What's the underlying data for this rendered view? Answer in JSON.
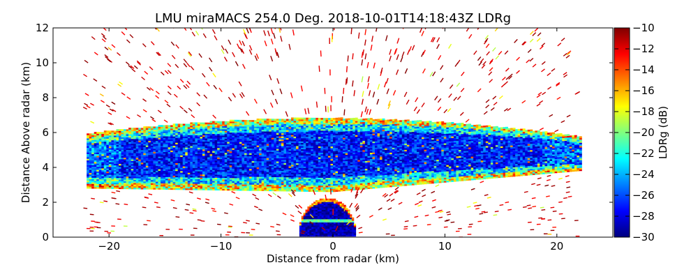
{
  "chart_data": {
    "type": "heatmap",
    "title": "LMU miraMACS 254.0 Deg. 2018-10-01T14:18:43Z  LDRg",
    "xlabel": "Distance from radar (km)",
    "ylabel": "Distance Above radar  (km)",
    "xlim": [
      -25,
      25
    ],
    "ylim": [
      0,
      12
    ],
    "x_ticks": [
      -20,
      -10,
      0,
      10,
      20
    ],
    "x_tick_labels": [
      "−20",
      "−10",
      "0",
      "10",
      "20"
    ],
    "y_ticks": [
      0,
      2,
      4,
      6,
      8,
      10,
      12
    ],
    "y_tick_labels": [
      "0",
      "2",
      "4",
      "6",
      "8",
      "10",
      "12"
    ],
    "colorbar": {
      "label": "LDRg (dB)",
      "min": -30,
      "max": -10,
      "ticks": [
        -10,
        -12,
        -14,
        -16,
        -18,
        -20,
        -22,
        -24,
        -26,
        -28,
        -30
      ],
      "tick_labels": [
        "−10",
        "−12",
        "−14",
        "−16",
        "−18",
        "−20",
        "−22",
        "−24",
        "−26",
        "−28",
        "−30"
      ],
      "colormap": "jet"
    },
    "scan": {
      "elevation_deg": 254.0,
      "timestamp": "2018-10-01T14:18:43Z",
      "variable": "LDRg"
    },
    "features": [
      {
        "name": "main cloud layer",
        "x_range_km": [
          -22,
          22
        ],
        "base_km": 2.6,
        "top_km": 6.8,
        "ldr_core_db": -27
      },
      {
        "name": "near-radar echo",
        "x_range_km": [
          -3,
          2
        ],
        "base_km": 0,
        "top_km": 2.2,
        "ldr_core_db": -29
      },
      {
        "name": "sparse noise gates",
        "x_range_km": [
          -22,
          22
        ],
        "base_km": 0,
        "top_km": 12,
        "ldr_core_db": -10
      }
    ]
  },
  "colors": {
    "jet_stops": [
      "#00007f",
      "#0000ff",
      "#007fff",
      "#00ffff",
      "#7fff7f",
      "#ffff00",
      "#ff7f00",
      "#ff0000",
      "#7f0000"
    ],
    "axis": "#000000",
    "background": "#ffffff"
  }
}
